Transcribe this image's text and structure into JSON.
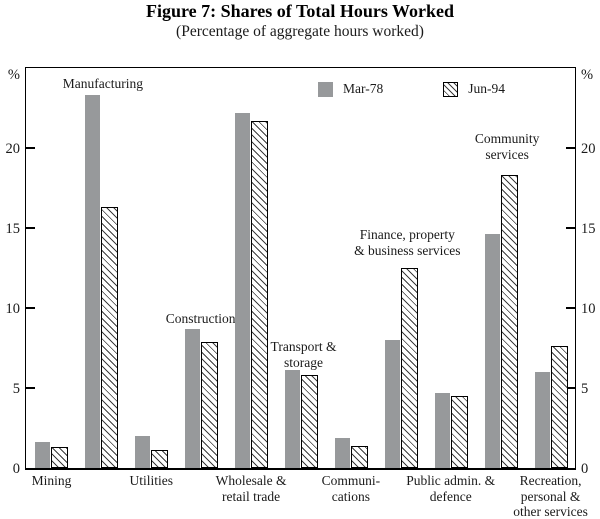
{
  "figure": {
    "title": "Figure 7: Shares of Total Hours Worked",
    "subtitle": "(Percentage of aggregate hours worked)"
  },
  "chart_data": {
    "type": "bar",
    "title": "Figure 7: Shares of Total Hours Worked",
    "subtitle": "(Percentage of aggregate hours worked)",
    "axis_unit_label": "%",
    "yticks": [
      0,
      5,
      10,
      15,
      20
    ],
    "ylim": [
      0,
      25
    ],
    "grid": false,
    "legend_position": "top-center-inside",
    "categories": [
      {
        "name": "Mining",
        "lines": [
          "Mining"
        ],
        "label_placement": "below_axis"
      },
      {
        "name": "Manufacturing",
        "lines": [
          "Manufacturing"
        ],
        "label_placement": "above_bars"
      },
      {
        "name": "Utilities",
        "lines": [
          "Utilities"
        ],
        "label_placement": "below_axis"
      },
      {
        "name": "Construction",
        "lines": [
          "Construction"
        ],
        "label_placement": "above_bars"
      },
      {
        "name": "Wholesale & retail trade",
        "lines": [
          "Wholesale &",
          "retail trade"
        ],
        "label_placement": "below_axis"
      },
      {
        "name": "Transport & storage",
        "lines": [
          "Transport &",
          "storage"
        ],
        "label_placement": "above_bars"
      },
      {
        "name": "Communications",
        "lines": [
          "Communi-",
          "cations"
        ],
        "label_placement": "below_axis"
      },
      {
        "name": "Finance, property & business services",
        "lines": [
          "Finance, property",
          "& business services"
        ],
        "label_placement": "above_bars"
      },
      {
        "name": "Public admin. & defence",
        "lines": [
          "Public admin. &",
          "defence"
        ],
        "label_placement": "below_axis"
      },
      {
        "name": "Community services",
        "lines": [
          "Community",
          "services"
        ],
        "label_placement": "above_bars"
      },
      {
        "name": "Recreation, personal & other services",
        "lines": [
          "Recreation,",
          "personal &",
          "other services"
        ],
        "label_placement": "below_axis"
      }
    ],
    "series": [
      {
        "name": "Mar-78",
        "style": "solid",
        "values": [
          1.6,
          23.3,
          2.0,
          8.7,
          22.2,
          6.1,
          1.9,
          8.0,
          4.7,
          14.6,
          6.0
        ]
      },
      {
        "name": "Jun-94",
        "style": "hatched",
        "values": [
          1.3,
          16.3,
          1.1,
          7.9,
          21.7,
          5.8,
          1.4,
          12.5,
          4.5,
          18.3,
          7.6
        ]
      }
    ]
  },
  "colors": {
    "bar_solid": "#97999b",
    "bar_hatch_line": "#3f3f3f",
    "bar_hatch_bg": "#ffffff",
    "axis": "#000000",
    "text": "#1a1a1a"
  }
}
